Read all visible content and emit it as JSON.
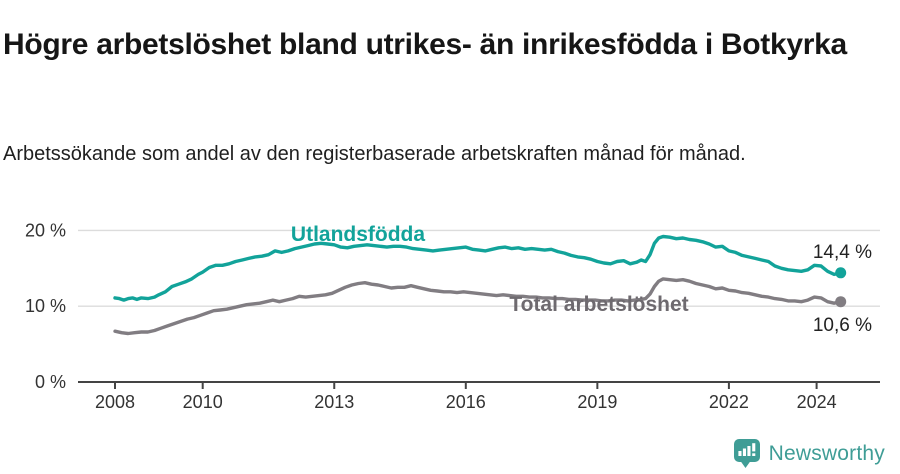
{
  "header": {
    "title": "Högre arbetslöshet bland utrikes- än inrikesfödda i Botkyrka",
    "subtitle": "Arbetssökande som andel av den registerbaserade arbetskraften månad för månad."
  },
  "footer": {
    "brand": "Newsworthy",
    "logo_icon": "bar-chart-exclamation-speech-bubble",
    "brand_color": "#3f9d96"
  },
  "colors": {
    "teal": "#12a39a",
    "gray": "#817d82",
    "gray_label": "#6e6a6f",
    "grid": "#dcdcdc",
    "axis": "#444444",
    "tick_text": "#333333",
    "value_text": "#222222"
  },
  "chart_data": {
    "type": "line",
    "title": "Högre arbetslöshet bland utrikes- än inrikesfödda i Botkyrka",
    "subtitle": "Arbetssökande som andel av den registerbaserade arbetskraften månad för månad.",
    "x_axis": {
      "ticks": [
        2008,
        2010,
        2013,
        2016,
        2019,
        2022,
        2024
      ]
    },
    "y_axis": {
      "ticks": [
        {
          "value": 0,
          "label": "0 %"
        },
        {
          "value": 10,
          "label": "10 %"
        },
        {
          "value": 20,
          "label": "20 %"
        }
      ]
    },
    "x_range": [
      2008.0,
      2024.55
    ],
    "y_range": [
      0,
      22
    ],
    "grid": "horizontal-only",
    "legend_position": "inline-labels",
    "series": [
      {
        "name": "Utlandsfödda",
        "end_label": "14,4 %",
        "end_value": 14.4,
        "color": "#12a39a",
        "label_color": "#12a39a",
        "points": [
          [
            2008.0,
            11.1
          ],
          [
            2008.1,
            11.0
          ],
          [
            2008.2,
            10.8
          ],
          [
            2008.3,
            11.0
          ],
          [
            2008.4,
            11.1
          ],
          [
            2008.5,
            10.9
          ],
          [
            2008.6,
            11.1
          ],
          [
            2008.75,
            11.0
          ],
          [
            2008.9,
            11.2
          ],
          [
            2009.0,
            11.5
          ],
          [
            2009.15,
            11.9
          ],
          [
            2009.3,
            12.6
          ],
          [
            2009.45,
            12.9
          ],
          [
            2009.6,
            13.2
          ],
          [
            2009.75,
            13.6
          ],
          [
            2009.9,
            14.2
          ],
          [
            2010.0,
            14.5
          ],
          [
            2010.15,
            15.1
          ],
          [
            2010.3,
            15.4
          ],
          [
            2010.45,
            15.4
          ],
          [
            2010.6,
            15.6
          ],
          [
            2010.75,
            15.9
          ],
          [
            2010.9,
            16.1
          ],
          [
            2011.05,
            16.3
          ],
          [
            2011.2,
            16.5
          ],
          [
            2011.35,
            16.6
          ],
          [
            2011.5,
            16.8
          ],
          [
            2011.65,
            17.3
          ],
          [
            2011.8,
            17.1
          ],
          [
            2011.95,
            17.3
          ],
          [
            2012.1,
            17.6
          ],
          [
            2012.25,
            17.8
          ],
          [
            2012.4,
            18.0
          ],
          [
            2012.55,
            18.2
          ],
          [
            2012.7,
            18.3
          ],
          [
            2012.85,
            18.2
          ],
          [
            2013.0,
            18.1
          ],
          [
            2013.15,
            17.8
          ],
          [
            2013.3,
            17.7
          ],
          [
            2013.45,
            17.9
          ],
          [
            2013.6,
            18.0
          ],
          [
            2013.75,
            18.1
          ],
          [
            2013.9,
            18.0
          ],
          [
            2014.05,
            17.9
          ],
          [
            2014.2,
            17.8
          ],
          [
            2014.35,
            17.9
          ],
          [
            2014.5,
            17.9
          ],
          [
            2014.65,
            17.8
          ],
          [
            2014.8,
            17.6
          ],
          [
            2014.95,
            17.5
          ],
          [
            2015.1,
            17.4
          ],
          [
            2015.25,
            17.3
          ],
          [
            2015.4,
            17.4
          ],
          [
            2015.55,
            17.5
          ],
          [
            2015.7,
            17.6
          ],
          [
            2015.85,
            17.7
          ],
          [
            2016.0,
            17.8
          ],
          [
            2016.15,
            17.5
          ],
          [
            2016.3,
            17.4
          ],
          [
            2016.45,
            17.3
          ],
          [
            2016.6,
            17.5
          ],
          [
            2016.75,
            17.7
          ],
          [
            2016.9,
            17.8
          ],
          [
            2017.05,
            17.6
          ],
          [
            2017.2,
            17.7
          ],
          [
            2017.35,
            17.5
          ],
          [
            2017.5,
            17.6
          ],
          [
            2017.65,
            17.5
          ],
          [
            2017.8,
            17.4
          ],
          [
            2017.95,
            17.5
          ],
          [
            2018.1,
            17.2
          ],
          [
            2018.25,
            17.0
          ],
          [
            2018.4,
            16.7
          ],
          [
            2018.55,
            16.5
          ],
          [
            2018.7,
            16.4
          ],
          [
            2018.85,
            16.2
          ],
          [
            2019.0,
            15.9
          ],
          [
            2019.15,
            15.7
          ],
          [
            2019.3,
            15.6
          ],
          [
            2019.45,
            15.9
          ],
          [
            2019.6,
            16.0
          ],
          [
            2019.75,
            15.6
          ],
          [
            2019.9,
            15.8
          ],
          [
            2020.0,
            16.1
          ],
          [
            2020.1,
            15.9
          ],
          [
            2020.2,
            16.8
          ],
          [
            2020.3,
            18.3
          ],
          [
            2020.4,
            19.0
          ],
          [
            2020.5,
            19.2
          ],
          [
            2020.65,
            19.1
          ],
          [
            2020.8,
            18.9
          ],
          [
            2020.95,
            19.0
          ],
          [
            2021.1,
            18.8
          ],
          [
            2021.25,
            18.7
          ],
          [
            2021.4,
            18.5
          ],
          [
            2021.55,
            18.2
          ],
          [
            2021.7,
            17.8
          ],
          [
            2021.85,
            17.9
          ],
          [
            2022.0,
            17.3
          ],
          [
            2022.15,
            17.1
          ],
          [
            2022.3,
            16.7
          ],
          [
            2022.45,
            16.5
          ],
          [
            2022.6,
            16.3
          ],
          [
            2022.75,
            16.1
          ],
          [
            2022.9,
            15.9
          ],
          [
            2023.05,
            15.3
          ],
          [
            2023.2,
            15.0
          ],
          [
            2023.35,
            14.8
          ],
          [
            2023.5,
            14.7
          ],
          [
            2023.65,
            14.6
          ],
          [
            2023.8,
            14.8
          ],
          [
            2023.95,
            15.4
          ],
          [
            2024.1,
            15.3
          ],
          [
            2024.25,
            14.6
          ],
          [
            2024.4,
            14.2
          ],
          [
            2024.55,
            14.4
          ]
        ]
      },
      {
        "name": "Total arbetslöshet",
        "end_label": "10,6 %",
        "end_value": 10.6,
        "color": "#817d82",
        "label_color": "#6e6a6f",
        "points": [
          [
            2008.0,
            6.7
          ],
          [
            2008.15,
            6.5
          ],
          [
            2008.3,
            6.4
          ],
          [
            2008.45,
            6.5
          ],
          [
            2008.6,
            6.6
          ],
          [
            2008.75,
            6.6
          ],
          [
            2008.9,
            6.8
          ],
          [
            2009.05,
            7.1
          ],
          [
            2009.2,
            7.4
          ],
          [
            2009.35,
            7.7
          ],
          [
            2009.5,
            8.0
          ],
          [
            2009.65,
            8.3
          ],
          [
            2009.8,
            8.5
          ],
          [
            2009.95,
            8.8
          ],
          [
            2010.1,
            9.1
          ],
          [
            2010.25,
            9.4
          ],
          [
            2010.4,
            9.5
          ],
          [
            2010.55,
            9.6
          ],
          [
            2010.7,
            9.8
          ],
          [
            2010.85,
            10.0
          ],
          [
            2011.0,
            10.2
          ],
          [
            2011.15,
            10.3
          ],
          [
            2011.3,
            10.4
          ],
          [
            2011.45,
            10.6
          ],
          [
            2011.6,
            10.8
          ],
          [
            2011.75,
            10.6
          ],
          [
            2011.9,
            10.8
          ],
          [
            2012.05,
            11.0
          ],
          [
            2012.2,
            11.3
          ],
          [
            2012.35,
            11.2
          ],
          [
            2012.5,
            11.3
          ],
          [
            2012.65,
            11.4
          ],
          [
            2012.8,
            11.5
          ],
          [
            2012.95,
            11.7
          ],
          [
            2013.1,
            12.1
          ],
          [
            2013.25,
            12.5
          ],
          [
            2013.4,
            12.8
          ],
          [
            2013.55,
            13.0
          ],
          [
            2013.7,
            13.1
          ],
          [
            2013.85,
            12.9
          ],
          [
            2014.0,
            12.8
          ],
          [
            2014.15,
            12.6
          ],
          [
            2014.3,
            12.4
          ],
          [
            2014.45,
            12.5
          ],
          [
            2014.6,
            12.5
          ],
          [
            2014.75,
            12.7
          ],
          [
            2014.9,
            12.5
          ],
          [
            2015.05,
            12.3
          ],
          [
            2015.2,
            12.1
          ],
          [
            2015.35,
            12.0
          ],
          [
            2015.5,
            11.9
          ],
          [
            2015.65,
            11.9
          ],
          [
            2015.8,
            11.8
          ],
          [
            2015.95,
            11.9
          ],
          [
            2016.1,
            11.8
          ],
          [
            2016.25,
            11.7
          ],
          [
            2016.4,
            11.6
          ],
          [
            2016.55,
            11.5
          ],
          [
            2016.7,
            11.4
          ],
          [
            2016.85,
            11.5
          ],
          [
            2017.0,
            11.4
          ],
          [
            2017.15,
            11.3
          ],
          [
            2017.3,
            11.3
          ],
          [
            2017.45,
            11.2
          ],
          [
            2017.6,
            11.2
          ],
          [
            2017.75,
            11.1
          ],
          [
            2017.9,
            11.1
          ],
          [
            2018.05,
            11.0
          ],
          [
            2018.2,
            11.0
          ],
          [
            2018.35,
            10.9
          ],
          [
            2018.5,
            10.9
          ],
          [
            2018.65,
            10.8
          ],
          [
            2018.8,
            10.8
          ],
          [
            2018.95,
            10.8
          ],
          [
            2019.1,
            10.7
          ],
          [
            2019.25,
            10.7
          ],
          [
            2019.4,
            10.8
          ],
          [
            2019.55,
            10.8
          ],
          [
            2019.7,
            10.7
          ],
          [
            2019.85,
            10.8
          ],
          [
            2020.0,
            10.9
          ],
          [
            2020.1,
            11.0
          ],
          [
            2020.2,
            11.6
          ],
          [
            2020.3,
            12.6
          ],
          [
            2020.4,
            13.3
          ],
          [
            2020.5,
            13.6
          ],
          [
            2020.65,
            13.5
          ],
          [
            2020.8,
            13.4
          ],
          [
            2020.95,
            13.5
          ],
          [
            2021.1,
            13.3
          ],
          [
            2021.25,
            13.0
          ],
          [
            2021.4,
            12.8
          ],
          [
            2021.55,
            12.6
          ],
          [
            2021.7,
            12.3
          ],
          [
            2021.85,
            12.4
          ],
          [
            2022.0,
            12.1
          ],
          [
            2022.15,
            12.0
          ],
          [
            2022.3,
            11.8
          ],
          [
            2022.45,
            11.7
          ],
          [
            2022.6,
            11.5
          ],
          [
            2022.75,
            11.3
          ],
          [
            2022.9,
            11.2
          ],
          [
            2023.05,
            11.0
          ],
          [
            2023.2,
            10.9
          ],
          [
            2023.35,
            10.7
          ],
          [
            2023.5,
            10.7
          ],
          [
            2023.65,
            10.6
          ],
          [
            2023.8,
            10.8
          ],
          [
            2023.95,
            11.2
          ],
          [
            2024.1,
            11.1
          ],
          [
            2024.25,
            10.6
          ],
          [
            2024.4,
            10.4
          ],
          [
            2024.55,
            10.6
          ]
        ]
      }
    ]
  }
}
